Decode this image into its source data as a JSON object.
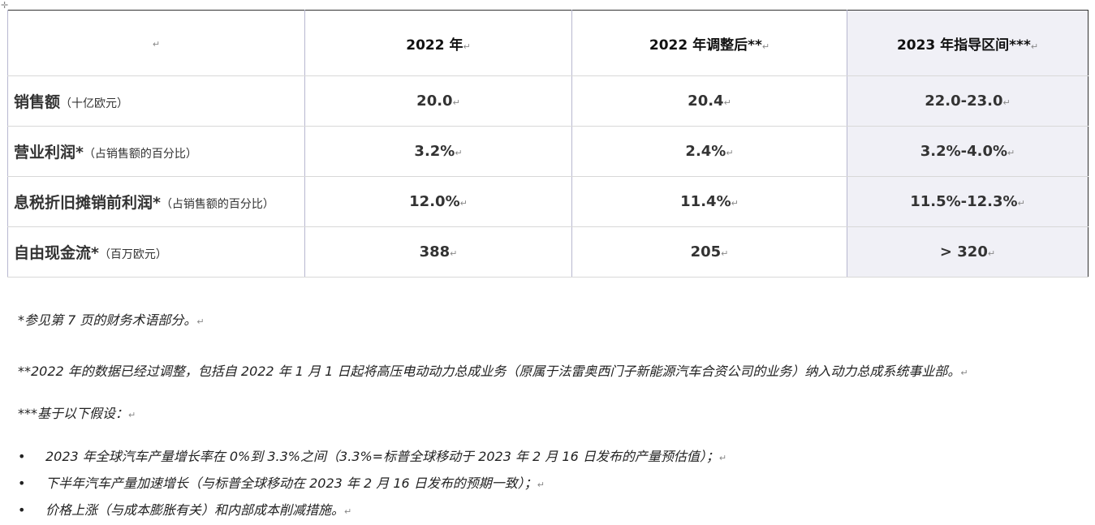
{
  "table": {
    "headers": [
      "",
      "2022 年",
      "2022 年调整后**",
      "2023 年指导区间***"
    ],
    "rows": [
      {
        "label": "销售额",
        "sub": "（十亿欧元）",
        "values": [
          "20.0",
          "20.4",
          "22.0-23.0"
        ]
      },
      {
        "label": "营业利润*",
        "sub": "（占销售额的百分比）",
        "values": [
          "3.2%",
          "2.4%",
          "3.2%-4.0%"
        ]
      },
      {
        "label": "息税折旧摊销前利润*",
        "sub": "（占销售额的百分比）",
        "values": [
          "12.0%",
          "11.4%",
          "11.5%-12.3%"
        ]
      },
      {
        "label": "自由现金流*",
        "sub": "（百万欧元）",
        "values": [
          "388",
          "205",
          "> 320"
        ]
      }
    ],
    "shade_color": "#f0f0f6",
    "accent_color": "#8ed04a"
  },
  "notes": {
    "n1": "*参见第 7 页的财务术语部分。",
    "n2": "**2022 年的数据已经过调整，包括自 2022 年 1 月 1 日起将高压电动动力总成业务（原属于法雷奥西门子新能源汽车合资公司的业务）纳入动力总成系统事业部。",
    "n3": "***基于以下假设：",
    "bullets": [
      "2023 年全球汽车产量增长率在 0%到 3.3%之间（3.3%=标普全球移动于 2023 年 2 月 16 日发布的产量预估值）；",
      "下半年汽车产量加速增长（与标普全球移动在 2023 年 2 月 16 日发布的预期一致）；",
      "价格上涨（与成本膨胀有关）和内部成本削减措施。"
    ]
  },
  "marks": {
    "para": "↵",
    "bullet_dot": "•",
    "anchor": "✛"
  }
}
